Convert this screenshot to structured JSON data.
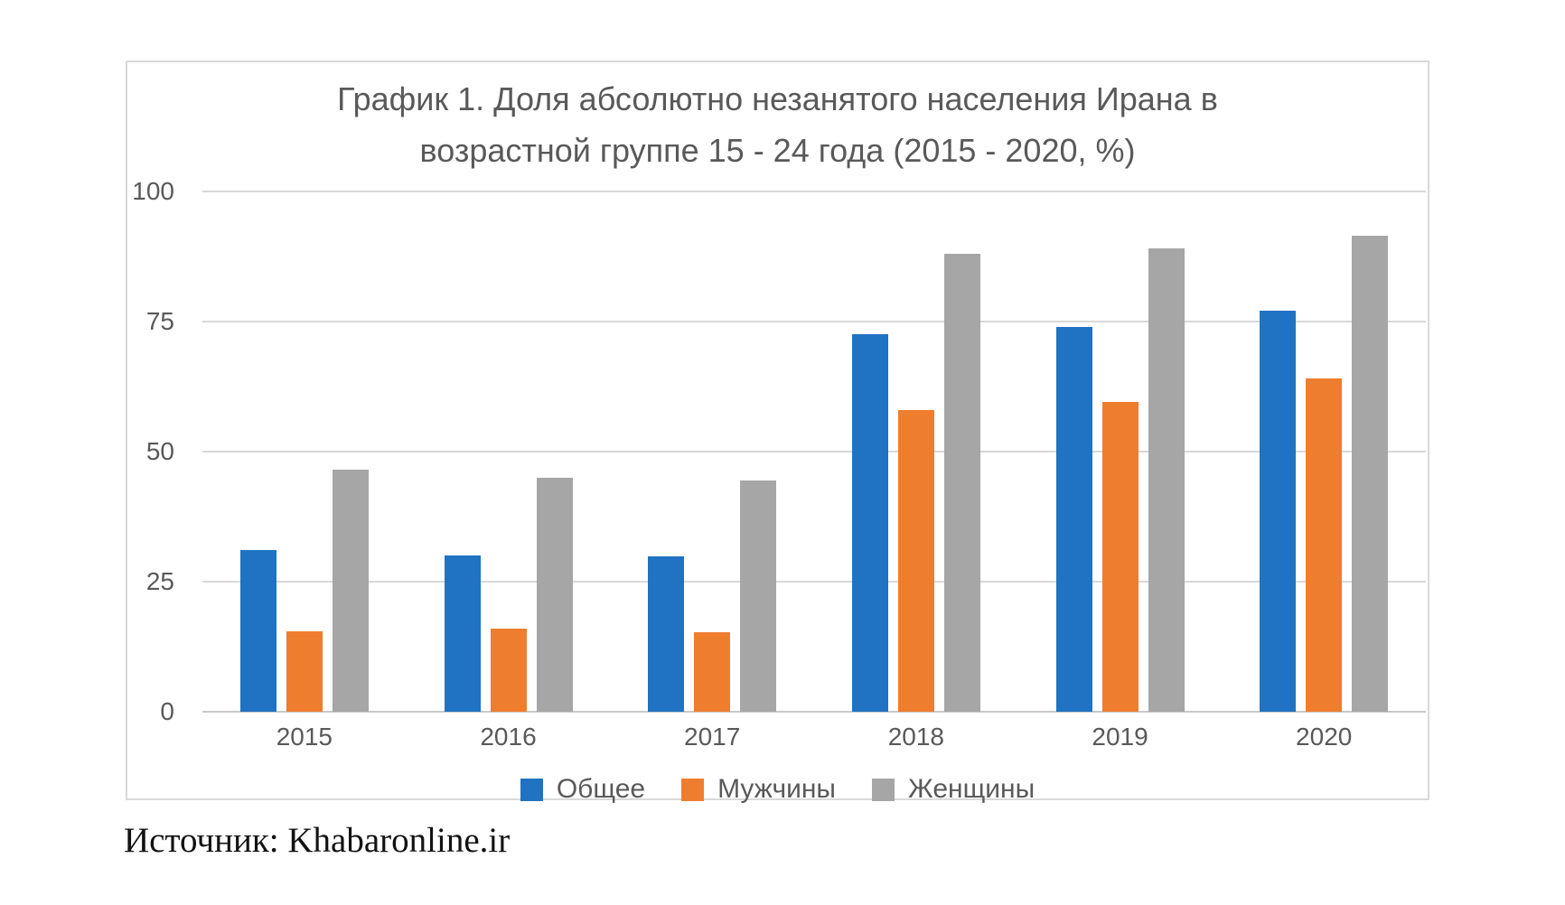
{
  "chart": {
    "panel_border_color": "#d9d9d9",
    "grid_color": "#d8d8d8",
    "text_color": "#595959"
  },
  "chart_data": {
    "type": "bar",
    "title": "График 1. Доля абсолютно незанятого населения Ирана в возрастной группе 15 - 24 года (2015 - 2020, %)",
    "title_lines": [
      "График 1. Доля абсолютно незанятого населения Ирана в",
      "возрастной группе 15 - 24 года (2015 - 2020, %)"
    ],
    "categories": [
      "2015",
      "2016",
      "2017",
      "2018",
      "2019",
      "2020"
    ],
    "series": [
      {
        "key": "total",
        "name": "Общее",
        "color": "#2073C2",
        "values": [
          31,
          30,
          29.8,
          72.5,
          74,
          77
        ]
      },
      {
        "key": "men",
        "name": "Мужчины",
        "color": "#EF7D2E",
        "values": [
          15.5,
          16,
          15.2,
          58,
          59.5,
          64
        ]
      },
      {
        "key": "women",
        "name": "Женщины",
        "color": "#A6A6A6",
        "values": [
          46.5,
          45,
          44.5,
          88,
          89,
          91.5
        ]
      }
    ],
    "y_ticks": [
      0,
      25,
      50,
      75,
      100
    ],
    "ylim": [
      0,
      100
    ],
    "grid": true,
    "legend_position": "bottom"
  },
  "source": {
    "label": "Источник: Khabaronline.ir"
  }
}
